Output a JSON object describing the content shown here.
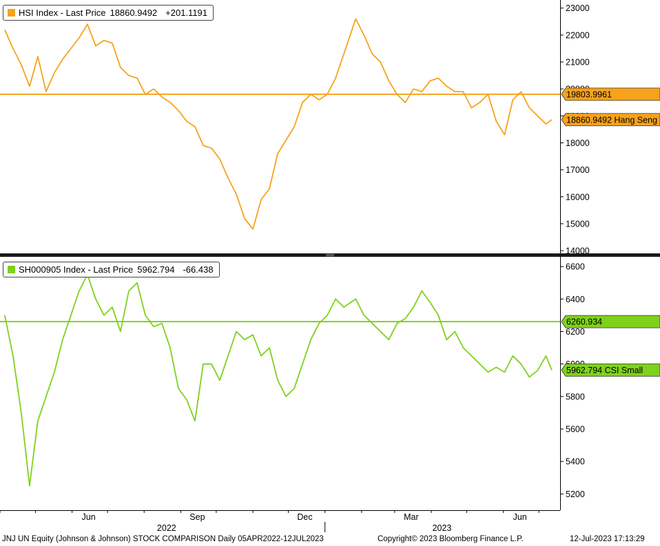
{
  "panels": [
    {
      "legend": {
        "name": "HSI Index",
        "price_label": "Last Price",
        "last": "18860.9492",
        "change": "+201.1191"
      },
      "ref_label": "19803.9961",
      "last_label": "18860.9492 Hang Seng"
    },
    {
      "legend": {
        "name": "SH000905 Index",
        "price_label": "Last Price",
        "last": "5962.794",
        "change": "-66.438"
      },
      "ref_label": "6260.934",
      "last_label": "5962.794 CSI Small"
    }
  ],
  "footer": {
    "left": "JNJ UN Equity (Johnson & Johnson) STOCK COMPARISON  Daily 05APR2022-12JUL2023",
    "center": "Copyright© 2023 Bloomberg Finance L.P.",
    "right": "12-Jul-2023 17:13:29"
  },
  "colors": {
    "hsi": "#f7a21b",
    "csi": "#7fd11b",
    "grid": "#dcdcdc",
    "axis": "#000000"
  },
  "chart_data": [
    {
      "type": "line",
      "title": "HSI Index - Last Price 18860.9492 +201.1191",
      "x_ticks": [
        "Jun",
        "Sep",
        "Dec",
        "Mar",
        "Jun"
      ],
      "x_years": [
        "2022",
        "2023"
      ],
      "ylim": [
        13900,
        23300
      ],
      "yticks": [
        14000,
        15000,
        16000,
        17000,
        18000,
        19000,
        20000,
        21000,
        22000,
        23000
      ],
      "grid": false,
      "legend": "top-left",
      "reference_line": 19803.9961,
      "last_value": 18860.9492,
      "series": [
        {
          "name": "HSI Index",
          "color": "#f7a21b",
          "x": [
            "2022-04-05",
            "2022-04-12",
            "2022-04-19",
            "2022-04-26",
            "2022-05-03",
            "2022-05-10",
            "2022-05-17",
            "2022-05-24",
            "2022-05-31",
            "2022-06-07",
            "2022-06-14",
            "2022-06-21",
            "2022-06-28",
            "2022-07-05",
            "2022-07-12",
            "2022-07-19",
            "2022-07-26",
            "2022-08-02",
            "2022-08-09",
            "2022-08-16",
            "2022-08-23",
            "2022-08-30",
            "2022-09-06",
            "2022-09-13",
            "2022-09-20",
            "2022-09-27",
            "2022-10-04",
            "2022-10-11",
            "2022-10-18",
            "2022-10-25",
            "2022-11-01",
            "2022-11-08",
            "2022-11-15",
            "2022-11-22",
            "2022-11-29",
            "2022-12-06",
            "2022-12-13",
            "2022-12-20",
            "2022-12-27",
            "2023-01-03",
            "2023-01-10",
            "2023-01-17",
            "2023-01-27",
            "2023-02-03",
            "2023-02-10",
            "2023-02-17",
            "2023-02-24",
            "2023-03-03",
            "2023-03-10",
            "2023-03-17",
            "2023-03-24",
            "2023-03-31",
            "2023-04-07",
            "2023-04-14",
            "2023-04-21",
            "2023-04-28",
            "2023-05-05",
            "2023-05-12",
            "2023-05-19",
            "2023-05-26",
            "2023-06-02",
            "2023-06-09",
            "2023-06-16",
            "2023-06-23",
            "2023-06-30",
            "2023-07-07",
            "2023-07-12"
          ],
          "values": [
            22200,
            21500,
            20900,
            20100,
            21200,
            19900,
            20600,
            21100,
            21500,
            21900,
            22400,
            21600,
            21800,
            21700,
            20800,
            20500,
            20400,
            19800,
            20000,
            19700,
            19500,
            19200,
            18800,
            18600,
            17900,
            17800,
            17400,
            16700,
            16100,
            15200,
            14800,
            15900,
            16300,
            17600,
            18100,
            18600,
            19500,
            19800,
            19600,
            19800,
            20400,
            21300,
            22600,
            22000,
            21300,
            21000,
            20300,
            19800,
            19500,
            20000,
            19900,
            20300,
            20400,
            20100,
            19900,
            19900,
            19300,
            19500,
            19800,
            18800,
            18300,
            19600,
            19900,
            19300,
            19000,
            18700,
            18860.9492
          ]
        }
      ]
    },
    {
      "type": "line",
      "title": "SH000905 Index - Last Price 5962.794 -66.438",
      "x_ticks": [
        "Jun",
        "Sep",
        "Dec",
        "Mar",
        "Jun"
      ],
      "x_years": [
        "2022",
        "2023"
      ],
      "ylim": [
        5100,
        6660
      ],
      "yticks": [
        5200,
        5400,
        5600,
        5800,
        6000,
        6200,
        6400,
        6600
      ],
      "grid": false,
      "legend": "top-left",
      "reference_line": 6260.934,
      "last_value": 5962.794,
      "series": [
        {
          "name": "SH000905 Index",
          "color": "#7fd11b",
          "x": [
            "2022-04-05",
            "2022-04-12",
            "2022-04-19",
            "2022-04-26",
            "2022-05-03",
            "2022-05-10",
            "2022-05-17",
            "2022-05-24",
            "2022-05-31",
            "2022-06-07",
            "2022-06-14",
            "2022-06-21",
            "2022-06-28",
            "2022-07-05",
            "2022-07-12",
            "2022-07-19",
            "2022-07-26",
            "2022-08-02",
            "2022-08-09",
            "2022-08-16",
            "2022-08-23",
            "2022-08-30",
            "2022-09-06",
            "2022-09-13",
            "2022-09-20",
            "2022-09-27",
            "2022-10-04",
            "2022-10-11",
            "2022-10-18",
            "2022-10-25",
            "2022-11-01",
            "2022-11-08",
            "2022-11-15",
            "2022-11-22",
            "2022-11-29",
            "2022-12-06",
            "2022-12-13",
            "2022-12-20",
            "2022-12-27",
            "2023-01-03",
            "2023-01-10",
            "2023-01-17",
            "2023-01-27",
            "2023-02-03",
            "2023-02-10",
            "2023-02-17",
            "2023-02-24",
            "2023-03-03",
            "2023-03-10",
            "2023-03-17",
            "2023-03-24",
            "2023-03-31",
            "2023-04-07",
            "2023-04-14",
            "2023-04-21",
            "2023-04-28",
            "2023-05-05",
            "2023-05-12",
            "2023-05-19",
            "2023-05-26",
            "2023-06-02",
            "2023-06-09",
            "2023-06-16",
            "2023-06-23",
            "2023-06-30",
            "2023-07-07",
            "2023-07-12"
          ],
          "values": [
            6300,
            6050,
            5700,
            5250,
            5650,
            5800,
            5950,
            6150,
            6300,
            6450,
            6550,
            6400,
            6300,
            6350,
            6200,
            6450,
            6500,
            6300,
            6230,
            6250,
            6100,
            5850,
            5780,
            5650,
            6000,
            6000,
            5900,
            6050,
            6200,
            6150,
            6180,
            6050,
            6100,
            5900,
            5800,
            5850,
            6000,
            6150,
            6250,
            6300,
            6400,
            6350,
            6400,
            6300,
            6250,
            6200,
            6150,
            6250,
            6280,
            6350,
            6450,
            6380,
            6300,
            6150,
            6200,
            6100,
            6050,
            6000,
            5950,
            5980,
            5950,
            6050,
            6000,
            5920,
            5960,
            6050,
            5962.794
          ]
        }
      ]
    }
  ]
}
